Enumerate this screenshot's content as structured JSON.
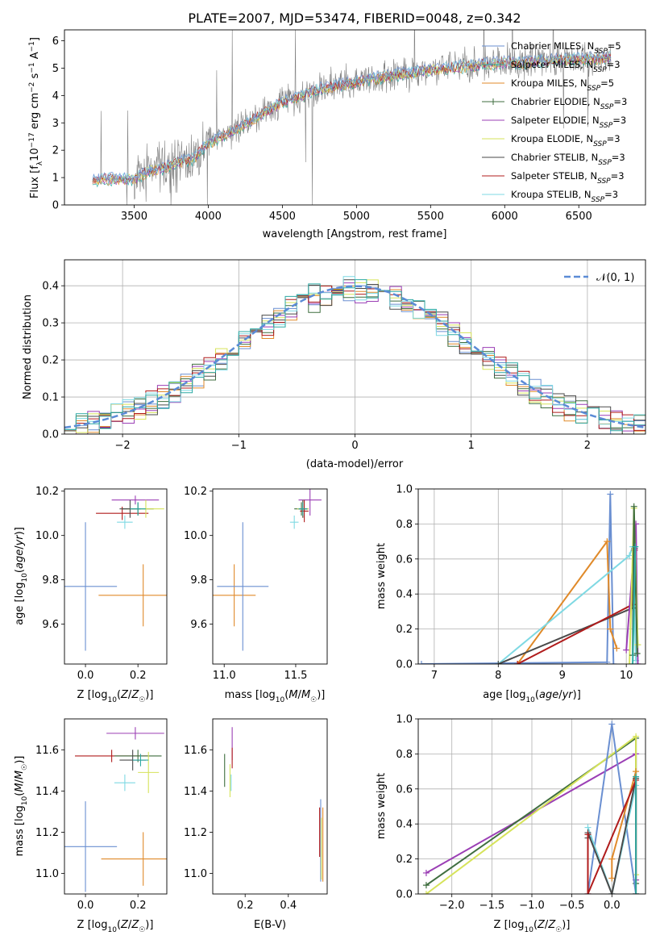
{
  "page_title": "PLATE=2007, MJD=53474, FIBERID=0048, z=0.342",
  "colors": {
    "chabrier_miles": "#6a8fd1",
    "salpeter_miles": "#2ca9a3",
    "kroupa_miles": "#e08a2a",
    "chabrier_elodie": "#3f6e3f",
    "salpeter_elodie": "#9b3fb5",
    "kroupa_elodie": "#d6e35a",
    "chabrier_stelib": "#4a4a4a",
    "salpeter_stelib": "#b01c1c",
    "kroupa_stelib": "#7fd9e3",
    "spectrum": "#808080",
    "normal": "#5b8bd6"
  },
  "chart_data": [
    {
      "id": "spectrum",
      "type": "line",
      "title": "PLATE=2007, MJD=53474, FIBERID=0048, z=0.342",
      "xlabel": "wavelength [Angstrom, rest frame]",
      "ylabel": "Flux [f_λ 10^-17 erg cm^-2 s^-1 A^-1]",
      "xlim": [
        3030,
        6950
      ],
      "ylim": [
        0,
        6.4
      ],
      "xticks": [
        "3500",
        "4000",
        "4500",
        "5000",
        "5500",
        "6000",
        "6500"
      ],
      "yticks": [
        "0",
        "1",
        "2",
        "3",
        "4",
        "5",
        "6"
      ],
      "legend_position": "upper-right",
      "legend": [
        "Chabrier MILES, N_SSP=5",
        "Salpeter MILES, N_SSP=3",
        "Kroupa MILES, N_SSP=5",
        "Chabrier ELODIE, N_SSP=3",
        "Salpeter ELODIE, N_SSP=3",
        "Kroupa ELODIE, N_SSP=3",
        "Chabrier STELIB, N_SSP=3",
        "Salpeter STELIB, N_SSP=3",
        "Kroupa STELIB, N_SSP=3"
      ],
      "continuum": {
        "x": [
          3220,
          3300,
          3400,
          3500,
          3600,
          3700,
          3800,
          3900,
          4000,
          4100,
          4200,
          4300,
          4400,
          4500,
          4600,
          4700,
          4800,
          4900,
          5000,
          5100,
          5200,
          5300,
          5400,
          5500,
          5600,
          5700,
          5800,
          5900,
          6000,
          6100,
          6200,
          6300,
          6400,
          6500,
          6600,
          6720
        ],
        "y": [
          0.9,
          0.95,
          0.95,
          0.95,
          1.25,
          1.35,
          1.55,
          1.7,
          2.25,
          2.55,
          2.8,
          3.1,
          3.45,
          3.75,
          3.95,
          4.15,
          4.3,
          4.4,
          4.5,
          4.6,
          4.7,
          4.8,
          4.85,
          4.95,
          5.0,
          5.05,
          5.1,
          5.15,
          5.2,
          5.2,
          5.25,
          5.3,
          5.3,
          5.35,
          5.35,
          5.4
        ]
      }
    },
    {
      "id": "residuals",
      "type": "line",
      "xlabel": "(data-model)/error",
      "ylabel": "Normed distribution",
      "xlim": [
        -2.5,
        2.5
      ],
      "ylim": [
        0,
        0.47
      ],
      "xticks": [
        "−2",
        "−1",
        "0",
        "1",
        "2"
      ],
      "yticks": [
        "0.0",
        "0.1",
        "0.2",
        "0.3",
        "0.4"
      ],
      "grid": true,
      "legend": [
        "𝒩(0, 1)"
      ],
      "legend_position": "upper-right"
    },
    {
      "id": "age_vs_Z",
      "type": "scatter",
      "xlabel": "Z [log10(Z/Z☉)]",
      "ylabel": "age [log10(age/yr)]",
      "xlim": [
        -0.08,
        0.31
      ],
      "ylim": [
        9.42,
        10.21
      ],
      "xticks": [
        "0.0",
        "0.2"
      ],
      "yticks": [
        "9.6",
        "9.8",
        "10.0",
        "10.2"
      ],
      "points": [
        {
          "c": "kroupa_miles",
          "x": 0.22,
          "y": 9.73,
          "xe": 0.17,
          "ye": 0.14
        },
        {
          "c": "chabrier_miles",
          "x": 0.0,
          "y": 9.77,
          "xe": 0.12,
          "ye": 0.29
        },
        {
          "c": "salpeter_stelib",
          "x": 0.14,
          "y": 10.1,
          "xe": 0.1,
          "ye": 0.03
        },
        {
          "c": "salpeter_elodie",
          "x": 0.19,
          "y": 10.16,
          "xe": 0.09,
          "ye": 0.02
        },
        {
          "c": "chabrier_elodie",
          "x": 0.2,
          "y": 10.12,
          "xe": 0.06,
          "ye": 0.03
        },
        {
          "c": "kroupa_elodie",
          "x": 0.23,
          "y": 10.12,
          "xe": 0.07,
          "ye": 0.04
        },
        {
          "c": "chabrier_stelib",
          "x": 0.17,
          "y": 10.12,
          "xe": 0.04,
          "ye": 0.04
        },
        {
          "c": "kroupa_stelib",
          "x": 0.15,
          "y": 10.06,
          "xe": 0.03,
          "ye": 0.03
        },
        {
          "c": "salpeter_miles",
          "x": 0.2,
          "y": 10.12,
          "xe": 0.03,
          "ye": 0.03
        }
      ]
    },
    {
      "id": "age_vs_mass",
      "type": "scatter",
      "xlabel": "mass [log10(M/M☉)]",
      "ylabel": "",
      "xlim": [
        10.92,
        11.72
      ],
      "ylim": [
        9.42,
        10.21
      ],
      "xticks": [
        "11.0",
        "11.5"
      ],
      "yticks": [
        "9.6",
        "9.8",
        "10.0",
        "10.2"
      ],
      "points": [
        {
          "c": "kroupa_miles",
          "x": 11.07,
          "y": 9.73,
          "xe": 0.15,
          "ye": 0.14
        },
        {
          "c": "chabrier_miles",
          "x": 11.13,
          "y": 9.77,
          "xe": 0.18,
          "ye": 0.29
        },
        {
          "c": "salpeter_elodie",
          "x": 11.6,
          "y": 10.16,
          "xe": 0.08,
          "ye": 0.07
        },
        {
          "c": "chabrier_elodie",
          "x": 11.54,
          "y": 10.12,
          "xe": 0.05,
          "ye": 0.03
        },
        {
          "c": "kroupa_elodie",
          "x": 11.55,
          "y": 10.12,
          "xe": 0.04,
          "ye": 0.04
        },
        {
          "c": "chabrier_stelib",
          "x": 11.55,
          "y": 10.12,
          "xe": 0.03,
          "ye": 0.04
        },
        {
          "c": "salpeter_stelib",
          "x": 11.56,
          "y": 10.11,
          "xe": 0.03,
          "ye": 0.05
        },
        {
          "c": "kroupa_stelib",
          "x": 11.49,
          "y": 10.06,
          "xe": 0.03,
          "ye": 0.03
        },
        {
          "c": "salpeter_miles",
          "x": 11.55,
          "y": 10.12,
          "xe": 0.03,
          "ye": 0.03
        }
      ]
    },
    {
      "id": "weight_vs_age",
      "type": "line",
      "xlabel": "age [log10(age/yr)]",
      "ylabel": "mass weight",
      "xlim": [
        6.75,
        10.3
      ],
      "ylim": [
        0,
        1.0
      ],
      "xticks": [
        "7",
        "8",
        "9",
        "10"
      ],
      "yticks": [
        "0.0",
        "0.2",
        "0.4",
        "0.6",
        "0.8",
        "1.0"
      ],
      "grid": true,
      "series": [
        {
          "c": "chabrier_miles",
          "x": [
            6.8,
            9.7,
            9.75,
            9.8
          ],
          "y": [
            0.0,
            0.01,
            0.97,
            0.0
          ]
        },
        {
          "c": "kroupa_miles",
          "x": [
            8.3,
            9.7,
            9.75,
            9.85
          ],
          "y": [
            0.0,
            0.7,
            0.2,
            0.09
          ]
        },
        {
          "c": "kroupa_stelib",
          "x": [
            8.0,
            10.05,
            10.1,
            10.15
          ],
          "y": [
            0.0,
            0.62,
            0.67,
            0.02
          ]
        },
        {
          "c": "chabrier_stelib",
          "x": [
            8.0,
            10.1,
            10.13
          ],
          "y": [
            0.0,
            0.32,
            0.66
          ]
        },
        {
          "c": "salpeter_stelib",
          "x": [
            8.3,
            10.1,
            10.13
          ],
          "y": [
            0.0,
            0.34,
            0.65
          ]
        },
        {
          "c": "salpeter_elodie",
          "x": [
            10.0,
            10.15,
            10.18
          ],
          "y": [
            0.08,
            0.8,
            0.0
          ]
        },
        {
          "c": "kroupa_elodie",
          "x": [
            10.05,
            10.12,
            10.18
          ],
          "y": [
            0.0,
            0.89,
            0.11
          ]
        },
        {
          "c": "chabrier_elodie",
          "x": [
            10.1,
            10.12,
            10.17
          ],
          "y": [
            0.05,
            0.9,
            0.06
          ]
        },
        {
          "c": "salpeter_miles",
          "x": [
            10.1,
            10.14
          ],
          "y": [
            0.0,
            0.67
          ]
        }
      ]
    },
    {
      "id": "mass_vs_Z",
      "type": "scatter",
      "xlabel": "Z [log10(Z/Z☉)]",
      "ylabel": "mass [log10(M/M☉)]",
      "xlim": [
        -0.08,
        0.31
      ],
      "ylim": [
        10.9,
        11.75
      ],
      "xticks": [
        "0.0",
        "0.2"
      ],
      "yticks": [
        "11.0",
        "11.2",
        "11.4",
        "11.6"
      ],
      "points": [
        {
          "c": "kroupa_miles",
          "x": 0.22,
          "y": 11.07,
          "xe": 0.16,
          "ye": 0.13
        },
        {
          "c": "chabrier_miles",
          "x": 0.0,
          "y": 11.13,
          "xe": 0.12,
          "ye": 0.22
        },
        {
          "c": "salpeter_elodie",
          "x": 0.19,
          "y": 11.68,
          "xe": 0.11,
          "ye": 0.03
        },
        {
          "c": "salpeter_stelib",
          "x": 0.1,
          "y": 11.57,
          "xe": 0.14,
          "ye": 0.03
        },
        {
          "c": "chabrier_elodie",
          "x": 0.2,
          "y": 11.57,
          "xe": 0.09,
          "ye": 0.03
        },
        {
          "c": "chabrier_stelib",
          "x": 0.18,
          "y": 11.55,
          "xe": 0.05,
          "ye": 0.05
        },
        {
          "c": "kroupa_elodie",
          "x": 0.24,
          "y": 11.49,
          "xe": 0.04,
          "ye": 0.1
        },
        {
          "c": "kroupa_stelib",
          "x": 0.15,
          "y": 11.44,
          "xe": 0.04,
          "ye": 0.04
        },
        {
          "c": "salpeter_miles",
          "x": 0.21,
          "y": 11.55,
          "xe": 0.03,
          "ye": 0.03
        }
      ]
    },
    {
      "id": "mass_vs_ebv",
      "type": "scatter",
      "xlabel": "E(B-V)",
      "ylabel": "",
      "xlim": [
        0.05,
        0.58
      ],
      "ylim": [
        10.9,
        11.75
      ],
      "xticks": [
        "0.2",
        "0.4"
      ],
      "yticks": [
        "11.0",
        "11.2",
        "11.4",
        "11.6"
      ],
      "points": [
        {
          "c": "chabrier_elodie",
          "x": 0.105,
          "y": 11.5,
          "xe": 0,
          "ye": 0.08
        },
        {
          "c": "kroupa_elodie",
          "x": 0.13,
          "y": 11.45,
          "xe": 0,
          "ye": 0.08
        },
        {
          "c": "salpeter_elodie",
          "x": 0.14,
          "y": 11.63,
          "xe": 0,
          "ye": 0.08
        },
        {
          "c": "salpeter_stelib",
          "x": 0.14,
          "y": 11.56,
          "xe": 0,
          "ye": 0.05
        },
        {
          "c": "kroupa_stelib",
          "x": 0.135,
          "y": 11.44,
          "xe": 0,
          "ye": 0.04
        },
        {
          "c": "chabrier_miles",
          "x": 0.55,
          "y": 11.16,
          "xe": 0,
          "ye": 0.2
        },
        {
          "c": "kroupa_miles",
          "x": 0.56,
          "y": 11.14,
          "xe": 0,
          "ye": 0.18
        },
        {
          "c": "salpeter_stelib",
          "x": 0.545,
          "y": 11.2,
          "xe": 0,
          "ye": 0.12
        },
        {
          "c": "kroupa_elodie",
          "x": 0.553,
          "y": 11.12,
          "xe": 0,
          "ye": 0.15
        }
      ]
    },
    {
      "id": "weight_vs_Z",
      "type": "line",
      "xlabel": "Z [log10(Z/Z☉)]",
      "ylabel": "mass weight",
      "xlim": [
        -2.42,
        0.42
      ],
      "ylim": [
        0,
        1.0
      ],
      "xticks": [
        "−2.0",
        "−1.5",
        "−1.0",
        "−0.5",
        "0.0"
      ],
      "yticks": [
        "0.0",
        "0.2",
        "0.4",
        "0.6",
        "0.8",
        "1.0"
      ],
      "grid": true,
      "series": [
        {
          "c": "salpeter_elodie",
          "x": [
            -2.32,
            0.3,
            0.3
          ],
          "y": [
            0.12,
            0.8,
            0.08
          ]
        },
        {
          "c": "chabrier_elodie",
          "x": [
            -2.32,
            0.3,
            0.3
          ],
          "y": [
            0.05,
            0.89,
            0.06
          ]
        },
        {
          "c": "kroupa_elodie",
          "x": [
            -2.32,
            0.3,
            0.3
          ],
          "y": [
            0.0,
            0.9,
            0.11
          ]
        },
        {
          "c": "chabrier_miles",
          "x": [
            -0.3,
            0.0,
            0.3
          ],
          "y": [
            0.0,
            0.97,
            0.0
          ]
        },
        {
          "c": "kroupa_miles",
          "x": [
            0.0,
            0.0,
            0.3
          ],
          "y": [
            0.09,
            0.2,
            0.7
          ]
        },
        {
          "c": "kroupa_stelib",
          "x": [
            -0.3,
            0.0,
            0.3
          ],
          "y": [
            0.38,
            0.0,
            0.62
          ]
        },
        {
          "c": "chabrier_stelib",
          "x": [
            -0.3,
            -0.3,
            0.0,
            0.3
          ],
          "y": [
            0.32,
            0.35,
            0.0,
            0.66
          ]
        },
        {
          "c": "salpeter_stelib",
          "x": [
            -0.3,
            -0.3,
            0.3,
            0.3
          ],
          "y": [
            0.34,
            0.0,
            0.65,
            0.0
          ]
        },
        {
          "c": "salpeter_miles",
          "x": [
            0.3,
            0.3
          ],
          "y": [
            0.0,
            0.67
          ]
        }
      ]
    }
  ]
}
